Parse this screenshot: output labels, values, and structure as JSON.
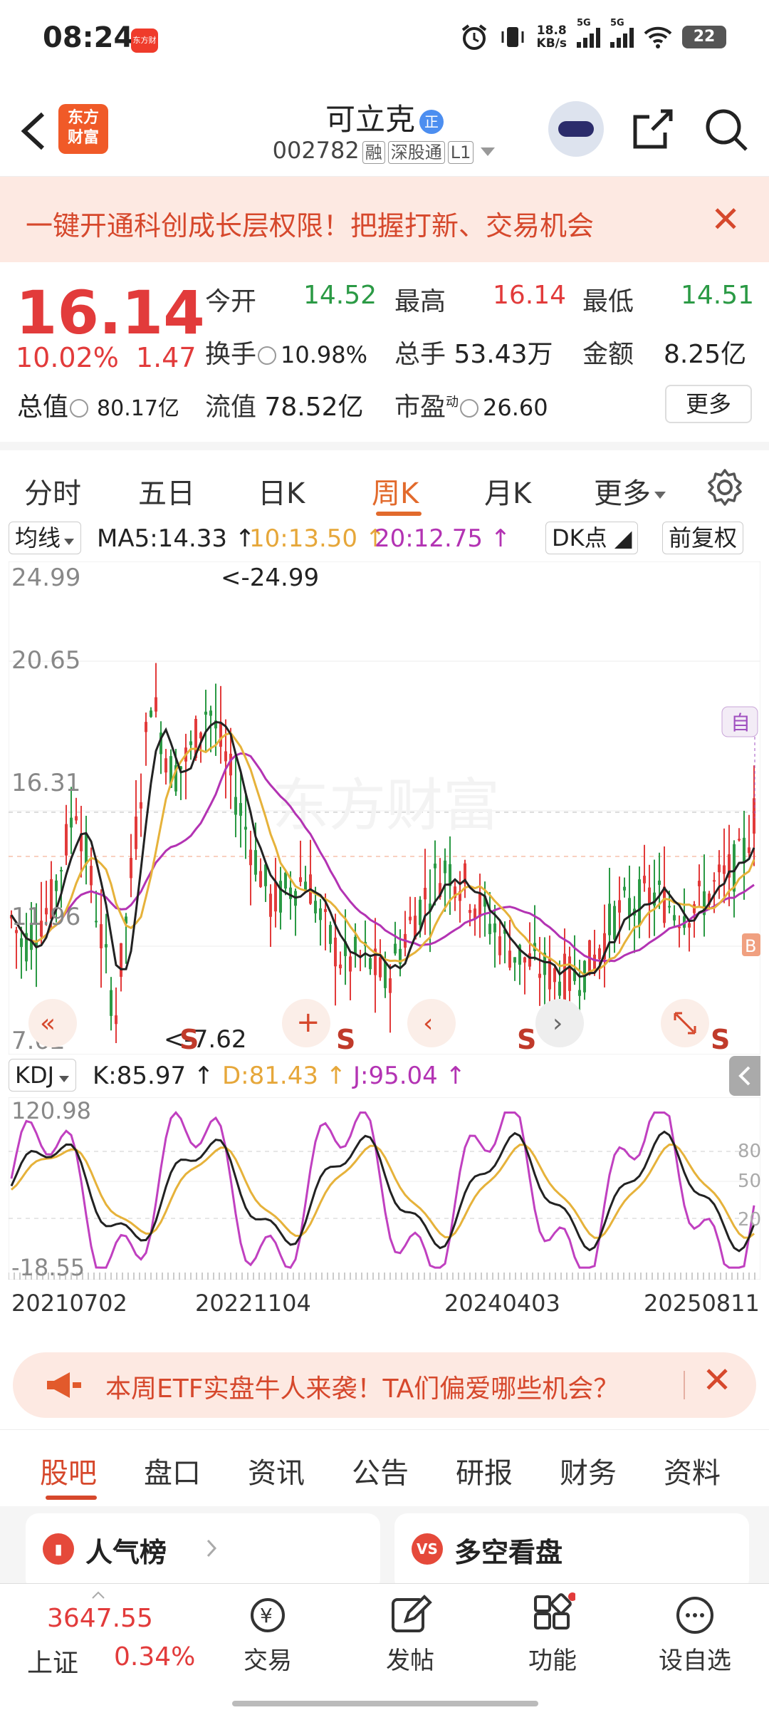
{
  "status_bar": {
    "time": "08:24",
    "app_badge": "东方财富",
    "net_speed_top": "18.8",
    "net_speed_bottom": "KB/s",
    "sig1": "5G",
    "sig2": "5G",
    "battery": "22"
  },
  "header": {
    "logo_top": "东方",
    "logo_bottom": "财富",
    "stock_name": "可立克",
    "name_badge": "正",
    "stock_code": "002782",
    "tags": [
      "融",
      "深股通",
      "L1"
    ]
  },
  "banner": {
    "text": "一键开通科创成长层权限！把握打新、交易机会",
    "close": "✕"
  },
  "quote": {
    "price": "16.14",
    "change_pct": "10.02%",
    "change": "1.47",
    "total_mv_label": "总值",
    "total_mv": "80.17亿",
    "open_label": "今开",
    "open": "14.52",
    "high_label": "最高",
    "high": "16.14",
    "low_label": "最低",
    "low": "14.51",
    "turnover_label": "换手",
    "turnover": "10.98%",
    "volume_label": "总手",
    "volume": "53.43万",
    "amount_label": "金额",
    "amount": "8.25亿",
    "float_mv_label": "流值",
    "float_mv": "78.52亿",
    "pe_label": "市盈",
    "pe_sup": "动",
    "pe": "26.60",
    "more": "更多"
  },
  "tabs": [
    "分时",
    "五日",
    "日K",
    "周K",
    "月K",
    "更多"
  ],
  "ma_bar": {
    "selector": "均线",
    "ma5": "MA5:14.33",
    "ma10": "10:13.50",
    "ma20": "20:12.75",
    "dk": "DK点",
    "adjust": "前复权"
  },
  "kchart": {
    "y_labels": [
      "24.99",
      "20.65",
      "16.31",
      "11.96",
      "7.62"
    ],
    "max_label": "<-24.99",
    "min_label": "<-7.62",
    "sell_marks": [
      "S",
      "S",
      "S",
      "S",
      "S"
    ],
    "self_mark": "自",
    "buy_mark": "B",
    "watermark": "东方财富"
  },
  "kdj_bar": {
    "selector": "KDJ",
    "k": "K:85.97",
    "d": "D:81.43",
    "j": "J:95.04"
  },
  "kdj": {
    "y_top": "120.98",
    "y_bottom": "-18.55",
    "ref80": "80",
    "ref50": "50",
    "ref20": "20"
  },
  "dates": [
    "20210702",
    "20221104",
    "20240403",
    "20250811"
  ],
  "promo": {
    "text": "本周ETF实盘牛人来袭！TA们偏爱哪些机会？",
    "close": "✕"
  },
  "subtabs": [
    "股吧",
    "盘口",
    "资讯",
    "公告",
    "研报",
    "财务",
    "资料"
  ],
  "cards": [
    {
      "title": "人气榜"
    },
    {
      "title": "多空看盘",
      "icon": "VS"
    }
  ],
  "nav": {
    "index_value": "3647.55",
    "index_name": "上证",
    "index_change": "0.34%",
    "items": [
      "交易",
      "发帖",
      "功能",
      "设自选"
    ]
  },
  "colors": {
    "up": "#e23b3b",
    "down": "#2b9a45",
    "accent": "#e26a2c",
    "ma5": "#222222",
    "ma10": "#e6b23a",
    "ma20": "#b333b3"
  }
}
